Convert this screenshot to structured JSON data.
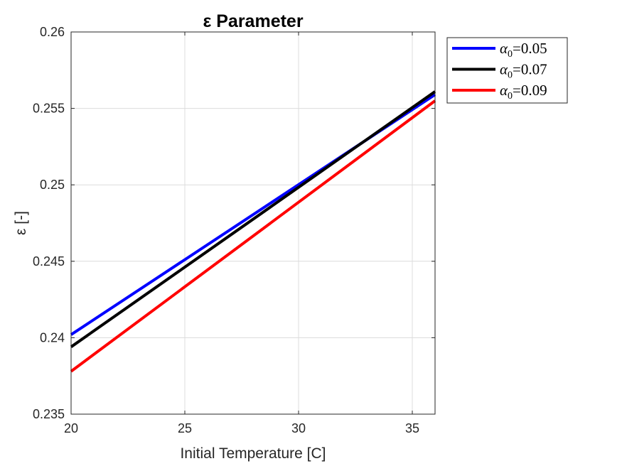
{
  "chart_data": {
    "type": "line",
    "title": "ε Parameter",
    "xlabel": "Initial Temperature [C]",
    "ylabel": "ε [-]",
    "xlim": [
      20,
      36
    ],
    "ylim": [
      0.235,
      0.26
    ],
    "xticks": [
      20,
      25,
      30,
      35
    ],
    "xtick_labels": [
      "20",
      "25",
      "30",
      "35"
    ],
    "yticks": [
      0.235,
      0.24,
      0.245,
      0.25,
      0.255,
      0.26
    ],
    "ytick_labels": [
      "0.235",
      "0.24",
      "0.245",
      "0.25",
      "0.255",
      "0.26"
    ],
    "grid": true,
    "legend_position": "outside-top-right",
    "series": [
      {
        "name": "α0=0.05",
        "symbol": "α",
        "subscript": "0",
        "value_text": "=0.05",
        "color": "#0000ff",
        "x": [
          20,
          36
        ],
        "y": [
          0.2402,
          0.2559
        ]
      },
      {
        "name": "α0=0.07",
        "symbol": "α",
        "subscript": "0",
        "value_text": "=0.07",
        "color": "#000000",
        "x": [
          20,
          36
        ],
        "y": [
          0.2394,
          0.2561
        ]
      },
      {
        "name": "α0=0.09",
        "symbol": "α",
        "subscript": "0",
        "value_text": "=0.09",
        "color": "#ff0000",
        "x": [
          20,
          36
        ],
        "y": [
          0.2378,
          0.2555
        ]
      }
    ]
  }
}
